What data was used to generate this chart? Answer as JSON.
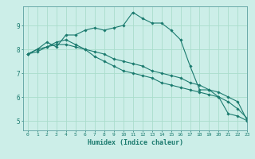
{
  "xlabel": "Humidex (Indice chaleur)",
  "ylabel": "",
  "xlim": [
    -0.5,
    23
  ],
  "ylim": [
    4.6,
    9.8
  ],
  "xticks": [
    0,
    1,
    2,
    3,
    4,
    5,
    6,
    7,
    8,
    9,
    10,
    11,
    12,
    13,
    14,
    15,
    16,
    17,
    18,
    19,
    20,
    21,
    22,
    23
  ],
  "yticks": [
    5,
    6,
    7,
    8,
    9
  ],
  "background_color": "#cceee8",
  "grid_color": "#aaddcc",
  "line_color": "#1a7a6e",
  "line1_x": [
    0,
    1,
    2,
    3,
    4,
    5,
    6,
    7,
    8,
    9,
    10,
    11,
    12,
    13,
    14,
    15,
    16,
    17,
    18,
    19,
    20,
    21,
    22,
    23
  ],
  "line1_y": [
    7.8,
    8.0,
    8.3,
    8.1,
    8.6,
    8.6,
    8.8,
    8.9,
    8.8,
    8.9,
    9.0,
    9.55,
    9.3,
    9.1,
    9.1,
    8.8,
    8.4,
    7.3,
    6.3,
    6.3,
    6.0,
    5.3,
    5.2,
    5.0
  ],
  "line2_x": [
    0,
    1,
    2,
    3,
    4,
    5,
    6,
    7,
    8,
    9,
    10,
    11,
    12,
    13,
    14,
    15,
    16,
    17,
    18,
    19,
    20,
    21,
    22,
    23
  ],
  "line2_y": [
    7.8,
    8.0,
    8.1,
    8.2,
    8.2,
    8.1,
    8.0,
    7.9,
    7.8,
    7.6,
    7.5,
    7.4,
    7.3,
    7.1,
    7.0,
    6.9,
    6.8,
    6.6,
    6.5,
    6.3,
    6.2,
    6.0,
    5.8,
    5.0
  ],
  "line3_x": [
    0,
    1,
    2,
    3,
    4,
    5,
    6,
    7,
    8,
    9,
    10,
    11,
    12,
    13,
    14,
    15,
    16,
    17,
    18,
    19,
    20,
    21,
    22,
    23
  ],
  "line3_y": [
    7.8,
    7.9,
    8.1,
    8.3,
    8.4,
    8.2,
    8.0,
    7.7,
    7.5,
    7.3,
    7.1,
    7.0,
    6.9,
    6.8,
    6.6,
    6.5,
    6.4,
    6.3,
    6.2,
    6.1,
    6.0,
    5.8,
    5.5,
    5.1
  ]
}
